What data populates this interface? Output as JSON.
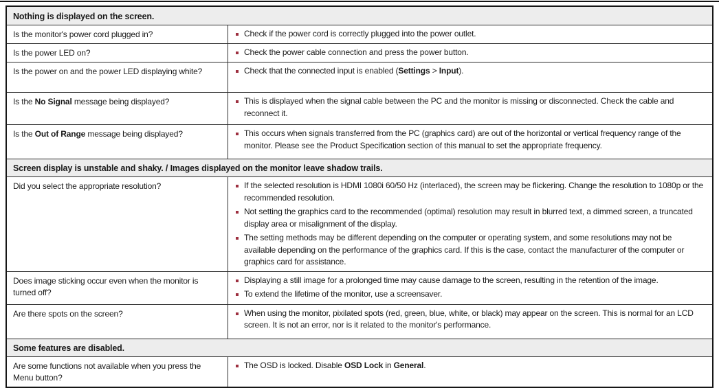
{
  "colors": {
    "bullet_accent": "#9d2f3f",
    "section_header_bg": "#ededed",
    "border": "#2b2b2b",
    "text": "#1a1a1a"
  },
  "icons": {
    "bullet": "square-bullet-icon"
  },
  "table": {
    "sections": [
      {
        "header": "Nothing is displayed on the screen.",
        "rows": [
          {
            "question": [
              {
                "t": "Is the monitor's power cord plugged in?"
              }
            ],
            "answers": [
              [
                {
                  "t": "Check if the power cord is correctly plugged into the power outlet."
                }
              ]
            ]
          },
          {
            "question": [
              {
                "t": "Is the power LED on?"
              }
            ],
            "answers": [
              [
                {
                  "t": "Check the power cable connection and press the power button."
                }
              ]
            ]
          },
          {
            "question": [
              {
                "t": "Is the power on and the power LED displaying white?"
              }
            ],
            "answers": [
              [
                {
                  "t": "Check that the connected input is enabled ("
                },
                {
                  "t": "Settings",
                  "b": true
                },
                {
                  "t": " > "
                },
                {
                  "t": "Input",
                  "b": true
                },
                {
                  "t": ")."
                }
              ]
            ]
          },
          {
            "question": [
              {
                "t": "Is the "
              },
              {
                "t": "No Signal",
                "b": true
              },
              {
                "t": " message being displayed?"
              }
            ],
            "answers": [
              [
                {
                  "t": "This is displayed when the signal cable between the PC and the monitor is missing or disconnected. Check the cable and reconnect it."
                }
              ]
            ]
          },
          {
            "question": [
              {
                "t": "Is the "
              },
              {
                "t": "Out of Range",
                "b": true
              },
              {
                "t": " message being displayed?"
              }
            ],
            "answers": [
              [
                {
                  "t": "This occurs when signals transferred from the PC (graphics card) are out of the horizontal or vertical frequency range of the monitor. Please see the Product Specification section of this manual to set the appropriate frequency."
                }
              ]
            ]
          }
        ]
      },
      {
        "header": "Screen display is unstable and shaky. / Images displayed on the monitor leave shadow trails.",
        "rows": [
          {
            "question": [
              {
                "t": "Did you select the appropriate resolution?"
              }
            ],
            "answers": [
              [
                {
                  "t": "If the selected resolution is HDMI 1080i 60/50 Hz (interlaced), the screen may be flickering. Change the resolution to 1080p or the recommended resolution."
                }
              ],
              [
                {
                  "t": "Not setting the graphics card to the recommended (optimal) resolution may result in blurred text, a dimmed screen, a truncated display area or misalignment of the display."
                }
              ],
              [
                {
                  "t": "The setting methods may be different depending on the computer or operating system, and some resolutions may not be available depending on the performance of the graphics card. If this is the case, contact the manufacturer of the computer or graphics card for assistance."
                }
              ]
            ]
          },
          {
            "question": [
              {
                "t": "Does image sticking occur even when the monitor is turned off?"
              }
            ],
            "answers": [
              [
                {
                  "t": "Displaying a still image for a prolonged time may cause damage to the screen, resulting in the retention of the image."
                }
              ],
              [
                {
                  "t": "To extend the lifetime of the monitor, use a screensaver."
                }
              ]
            ]
          },
          {
            "question": [
              {
                "t": "Are there spots on the screen?"
              }
            ],
            "answers": [
              [
                {
                  "t": "When using the monitor, pixilated spots (red, green, blue, white, or black) may appear on the screen. This is normal for an LCD screen. It is not an error, nor is it related to the monitor's performance."
                }
              ]
            ]
          }
        ]
      },
      {
        "header": "Some features are disabled.",
        "rows": [
          {
            "question": [
              {
                "t": "Are some functions not available when you press the Menu button?"
              }
            ],
            "answers": [
              [
                {
                  "t": "The OSD is locked. Disable "
                },
                {
                  "t": "OSD Lock",
                  "b": true
                },
                {
                  "t": " in "
                },
                {
                  "t": "General",
                  "b": true
                },
                {
                  "t": "."
                }
              ]
            ]
          }
        ]
      }
    ]
  }
}
